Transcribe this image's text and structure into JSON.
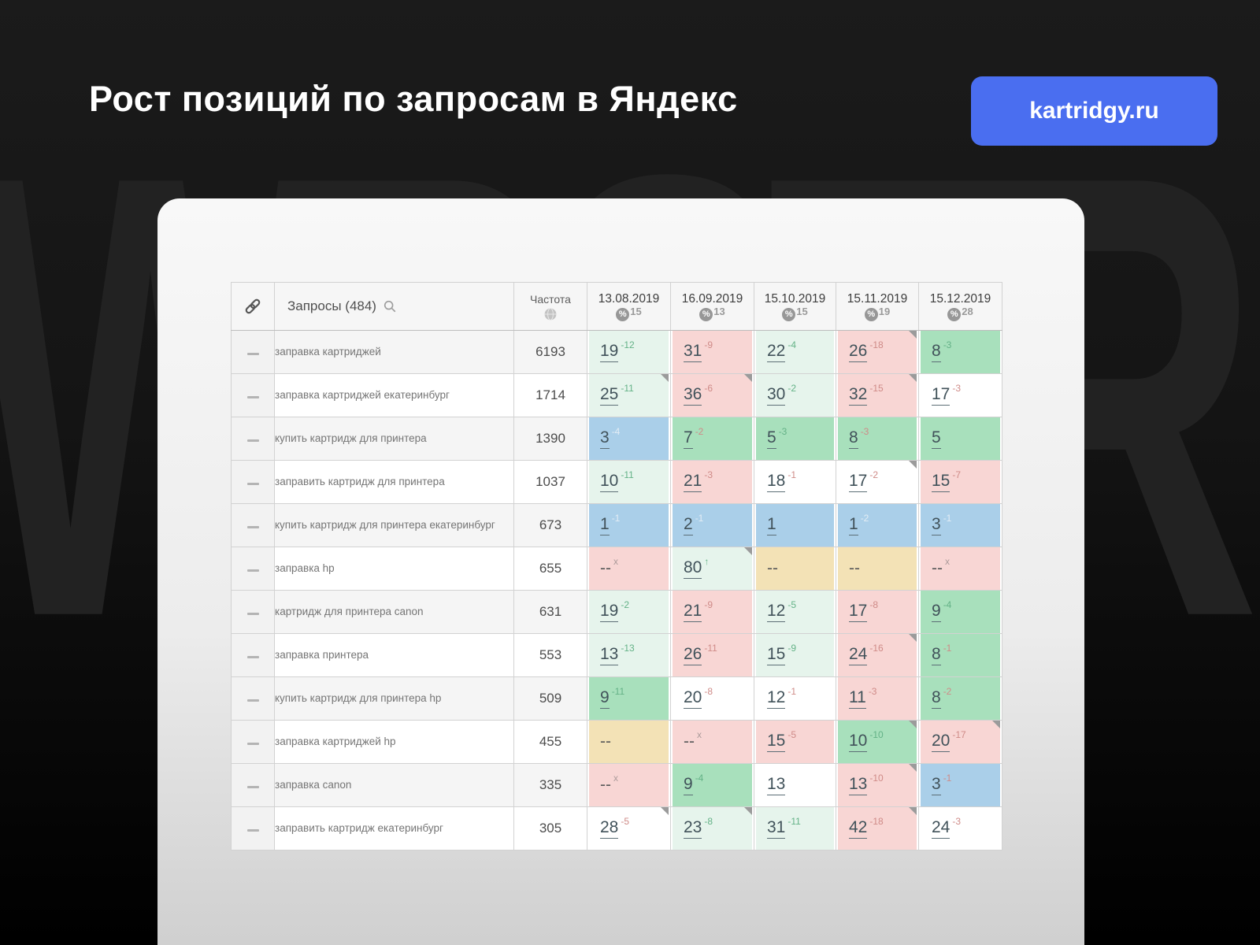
{
  "title": "Рост позиций по запросам в Яндекс",
  "badge": {
    "label": "kartridgy.ru",
    "color": "#4a6ef0"
  },
  "watermark": "WPSTR",
  "icons": {
    "link": "link-icon",
    "search": "search-icon",
    "globe": "globe-icon",
    "percent": "%"
  },
  "table": {
    "queries_header": "Запросы (484)",
    "frequency_header": "Частота",
    "date_columns": [
      {
        "date": "13.08.2019",
        "percent": "15"
      },
      {
        "date": "16.09.2019",
        "percent": "13"
      },
      {
        "date": "15.10.2019",
        "percent": "15"
      },
      {
        "date": "15.11.2019",
        "percent": "19"
      },
      {
        "date": "15.12.2019",
        "percent": "28"
      }
    ],
    "rows": [
      {
        "query": "заправка картриджей",
        "frequency": "6193",
        "cells": [
          {
            "pos": "19",
            "delta": "-12",
            "dir": "up",
            "bg": "g1"
          },
          {
            "pos": "31",
            "delta": "-9",
            "dir": "down",
            "bg": "pink"
          },
          {
            "pos": "22",
            "delta": "-4",
            "dir": "up",
            "bg": "g1"
          },
          {
            "pos": "26",
            "delta": "-18",
            "dir": "down",
            "bg": "pink",
            "marker": true
          },
          {
            "pos": "8",
            "delta": "-3",
            "dir": "up",
            "bg": "g2"
          }
        ]
      },
      {
        "query": "заправка картриджей екатеринбург",
        "frequency": "1714",
        "cells": [
          {
            "pos": "25",
            "delta": "-11",
            "dir": "up",
            "bg": "g1",
            "marker": true
          },
          {
            "pos": "36",
            "delta": "-6",
            "dir": "down",
            "bg": "pink",
            "marker": true
          },
          {
            "pos": "30",
            "delta": "-2",
            "dir": "up",
            "bg": "g1"
          },
          {
            "pos": "32",
            "delta": "-15",
            "dir": "down",
            "bg": "pink",
            "marker": true
          },
          {
            "pos": "17",
            "delta": "-3",
            "dir": "down",
            "bg": "white"
          }
        ]
      },
      {
        "query": "купить картридж для принтера",
        "frequency": "1390",
        "cells": [
          {
            "pos": "3",
            "delta": "-4",
            "dir": "neutral",
            "bg": "blue"
          },
          {
            "pos": "7",
            "delta": "-2",
            "dir": "down",
            "bg": "g2"
          },
          {
            "pos": "5",
            "delta": "-3",
            "dir": "up",
            "bg": "g2"
          },
          {
            "pos": "8",
            "delta": "-3",
            "dir": "down",
            "bg": "g2"
          },
          {
            "pos": "5",
            "delta": null,
            "dir": null,
            "bg": "g2"
          }
        ]
      },
      {
        "query": "заправить картридж для принтера",
        "frequency": "1037",
        "cells": [
          {
            "pos": "10",
            "delta": "-11",
            "dir": "up",
            "bg": "g1"
          },
          {
            "pos": "21",
            "delta": "-3",
            "dir": "down",
            "bg": "pink"
          },
          {
            "pos": "18",
            "delta": "-1",
            "dir": "down",
            "bg": "white"
          },
          {
            "pos": "17",
            "delta": "-2",
            "dir": "down",
            "bg": "white",
            "marker": true
          },
          {
            "pos": "15",
            "delta": "-7",
            "dir": "down",
            "bg": "pink"
          }
        ]
      },
      {
        "query": "купить картридж для принтера екатеринбург",
        "frequency": "673",
        "cells": [
          {
            "pos": "1",
            "delta": "-1",
            "dir": "neutral",
            "bg": "blue"
          },
          {
            "pos": "2",
            "delta": "-1",
            "dir": "neutral",
            "bg": "blue"
          },
          {
            "pos": "1",
            "delta": null,
            "dir": null,
            "bg": "blue"
          },
          {
            "pos": "1",
            "delta": "-2",
            "dir": "neutral",
            "bg": "blue"
          },
          {
            "pos": "3",
            "delta": "-1",
            "dir": "neutral",
            "bg": "blue"
          }
        ]
      },
      {
        "query": "заправка hp",
        "frequency": "655",
        "cells": [
          {
            "pos": "--",
            "delta": "x",
            "dir": "x",
            "bg": "pink"
          },
          {
            "pos": "80",
            "delta": "↑",
            "dir": "up",
            "bg": "g1",
            "marker": true
          },
          {
            "pos": "--",
            "delta": null,
            "dir": null,
            "bg": "tan"
          },
          {
            "pos": "--",
            "delta": null,
            "dir": null,
            "bg": "tan"
          },
          {
            "pos": "--",
            "delta": "x",
            "dir": "x",
            "bg": "pink"
          }
        ]
      },
      {
        "query": "картридж для принтера canon",
        "frequency": "631",
        "cells": [
          {
            "pos": "19",
            "delta": "-2",
            "dir": "up",
            "bg": "g1"
          },
          {
            "pos": "21",
            "delta": "-9",
            "dir": "down",
            "bg": "pink"
          },
          {
            "pos": "12",
            "delta": "-5",
            "dir": "up",
            "bg": "g1"
          },
          {
            "pos": "17",
            "delta": "-8",
            "dir": "down",
            "bg": "pink"
          },
          {
            "pos": "9",
            "delta": "-4",
            "dir": "up",
            "bg": "g2"
          }
        ]
      },
      {
        "query": "заправка принтера",
        "frequency": "553",
        "cells": [
          {
            "pos": "13",
            "delta": "-13",
            "dir": "up",
            "bg": "g1"
          },
          {
            "pos": "26",
            "delta": "-11",
            "dir": "down",
            "bg": "pink"
          },
          {
            "pos": "15",
            "delta": "-9",
            "dir": "up",
            "bg": "g1"
          },
          {
            "pos": "24",
            "delta": "-16",
            "dir": "down",
            "bg": "pink",
            "marker": true
          },
          {
            "pos": "8",
            "delta": "-1",
            "dir": "down",
            "bg": "g2"
          }
        ]
      },
      {
        "query": "купить картридж для принтера hp",
        "frequency": "509",
        "cells": [
          {
            "pos": "9",
            "delta": "-11",
            "dir": "up",
            "bg": "g2"
          },
          {
            "pos": "20",
            "delta": "-8",
            "dir": "down",
            "bg": "white"
          },
          {
            "pos": "12",
            "delta": "-1",
            "dir": "down",
            "bg": "white"
          },
          {
            "pos": "11",
            "delta": "-3",
            "dir": "down",
            "bg": "pink"
          },
          {
            "pos": "8",
            "delta": "-2",
            "dir": "down",
            "bg": "g2"
          }
        ]
      },
      {
        "query": "заправка картриджей hp",
        "frequency": "455",
        "cells": [
          {
            "pos": "--",
            "delta": null,
            "dir": null,
            "bg": "tan"
          },
          {
            "pos": "--",
            "delta": "x",
            "dir": "x",
            "bg": "pink"
          },
          {
            "pos": "15",
            "delta": "-5",
            "dir": "down",
            "bg": "pink"
          },
          {
            "pos": "10",
            "delta": "-10",
            "dir": "up",
            "bg": "g2",
            "marker": true
          },
          {
            "pos": "20",
            "delta": "-17",
            "dir": "down",
            "bg": "pink",
            "marker": true
          }
        ]
      },
      {
        "query": "заправка canon",
        "frequency": "335",
        "cells": [
          {
            "pos": "--",
            "delta": "x",
            "dir": "x",
            "bg": "pink"
          },
          {
            "pos": "9",
            "delta": "-4",
            "dir": "up",
            "bg": "g2"
          },
          {
            "pos": "13",
            "delta": null,
            "dir": null,
            "bg": "white"
          },
          {
            "pos": "13",
            "delta": "-10",
            "dir": "down",
            "bg": "pink",
            "marker": true
          },
          {
            "pos": "3",
            "delta": "-1",
            "dir": "down",
            "bg": "blue"
          }
        ]
      },
      {
        "query": "заправить картридж екатеринбург",
        "frequency": "305",
        "cells": [
          {
            "pos": "28",
            "delta": "-5",
            "dir": "down",
            "bg": "white",
            "marker": true
          },
          {
            "pos": "23",
            "delta": "-8",
            "dir": "up",
            "bg": "g1",
            "marker": true
          },
          {
            "pos": "31",
            "delta": "-11",
            "dir": "up",
            "bg": "g1"
          },
          {
            "pos": "42",
            "delta": "-18",
            "dir": "down",
            "bg": "pink",
            "marker": true
          },
          {
            "pos": "24",
            "delta": "-3",
            "dir": "down",
            "bg": "white"
          }
        ]
      }
    ]
  }
}
